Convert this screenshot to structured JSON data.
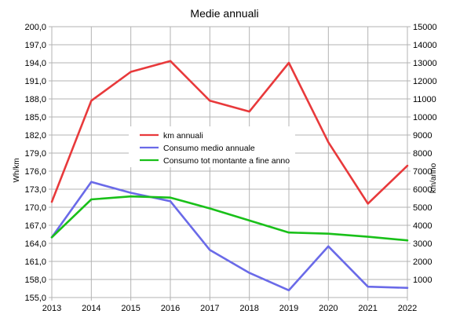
{
  "chart_data": {
    "type": "line",
    "title": "Medie annuali",
    "xlabel": "",
    "ylabel": "Wh/km",
    "y2label": "km/anno",
    "categories": [
      "2013",
      "2014",
      "2015",
      "2016",
      "2017",
      "2018",
      "2019",
      "2020",
      "2021",
      "2022"
    ],
    "ylim": [
      155,
      200
    ],
    "y_ticks": [
      "155,0",
      "158,0",
      "161,0",
      "164,0",
      "167,0",
      "170,0",
      "173,0",
      "176,0",
      "179,0",
      "182,0",
      "185,0",
      "188,0",
      "191,0",
      "194,0",
      "197,0",
      "200,0"
    ],
    "y2lim": [
      0,
      15000
    ],
    "y2_ticks": [
      "1000",
      "2000",
      "3000",
      "4000",
      "5000",
      "6000",
      "7000",
      "8000",
      "9000",
      "10000",
      "11000",
      "12000",
      "13000",
      "14000",
      "15000"
    ],
    "grid": true,
    "legend_position": "center",
    "series": [
      {
        "name": "km annuali",
        "axis": "right",
        "color": "#e8393b",
        "values": [
          5300,
          10900,
          12500,
          13100,
          10900,
          10300,
          13000,
          8600,
          5200,
          7300
        ]
      },
      {
        "name": "Consumo medio annuale",
        "axis": "left",
        "color": "#6a6ae8",
        "values": [
          165.0,
          174.2,
          172.4,
          171.0,
          162.9,
          159.1,
          156.2,
          163.5,
          156.8,
          156.6
        ]
      },
      {
        "name": "Consumo tot montante a fine anno",
        "axis": "left",
        "color": "#19c019",
        "values": [
          165.0,
          171.3,
          171.8,
          171.6,
          169.8,
          167.8,
          165.8,
          165.6,
          165.1,
          164.5
        ]
      }
    ]
  }
}
